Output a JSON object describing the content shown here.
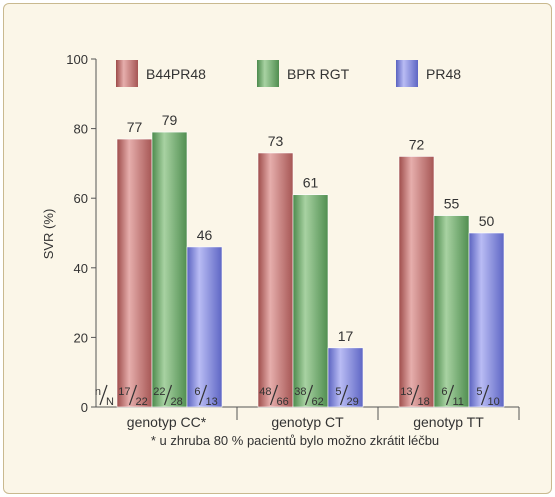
{
  "chart_data": {
    "type": "bar",
    "ylabel": "SVR (%)",
    "ylim": [
      0,
      100
    ],
    "yticks": [
      0,
      20,
      40,
      60,
      80,
      100
    ],
    "categories": [
      "genotyp CC*",
      "genotyp CT",
      "genotyp TT"
    ],
    "series": [
      {
        "name": "B44PR48",
        "color": "#c87a78",
        "values": [
          77,
          73,
          72
        ],
        "fractions": [
          [
            "17",
            "22"
          ],
          [
            "48",
            "66"
          ],
          [
            "13",
            "18"
          ]
        ]
      },
      {
        "name": "BPR RGT",
        "color": "#6fa66f",
        "values": [
          79,
          61,
          55
        ],
        "fractions": [
          [
            "22",
            "28"
          ],
          [
            "38",
            "62"
          ],
          [
            "6",
            "11"
          ]
        ]
      },
      {
        "name": "PR48",
        "color": "#7f86d6",
        "values": [
          46,
          17,
          50
        ],
        "fractions": [
          [
            "6",
            "13"
          ],
          [
            "5",
            "29"
          ],
          [
            "5",
            "10"
          ]
        ]
      }
    ],
    "fraction_key": [
      "n",
      "N"
    ],
    "legend_position": "top",
    "footnote": "* u zhruba 80 % pacientů bylo možno zkrátit léčbu"
  }
}
